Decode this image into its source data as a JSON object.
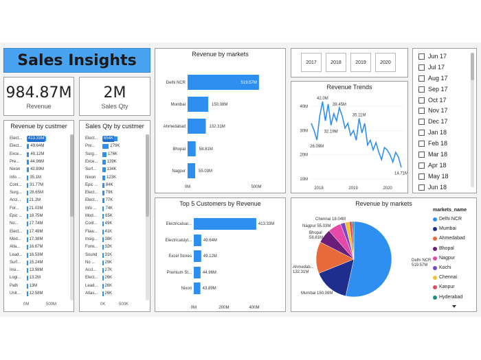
{
  "header": {
    "title": "Sales Insights"
  },
  "kpis": {
    "revenue": {
      "value": "984.87M",
      "label": "Revenue"
    },
    "sales_qty": {
      "value": "2M",
      "label": "Sales Qty"
    }
  },
  "revenue_by_customer": {
    "title": "Revenue by custmer",
    "axis": [
      "0M",
      "500M"
    ],
    "rows": [
      {
        "label": "Elect...",
        "value": 413.33,
        "text": "413.33M",
        "highlight": true
      },
      {
        "label": "Elect...",
        "value": 49.64,
        "text": "49.64M"
      },
      {
        "label": "Exce...",
        "value": 49.12,
        "text": "49.12M"
      },
      {
        "label": "Pre...",
        "value": 44.96,
        "text": "44.96M"
      },
      {
        "label": "Nixon",
        "value": 43.89,
        "text": "43.89M"
      },
      {
        "label": "Info ...",
        "value": 35.1,
        "text": "35.1M"
      },
      {
        "label": "Cont...",
        "value": 31.77,
        "text": "31.77M"
      },
      {
        "label": "Surg...",
        "value": 28.65,
        "text": "28.65M"
      },
      {
        "label": "Acci...",
        "value": 21.2,
        "text": "21.2M"
      },
      {
        "label": "For...",
        "value": 21.03,
        "text": "21.03M"
      },
      {
        "label": "Epic ...",
        "value": 18.75,
        "text": "18.75M"
      },
      {
        "label": "No...",
        "value": 17.74,
        "text": "17.74M"
      },
      {
        "label": "Elect...",
        "value": 17.49,
        "text": "17.49M"
      },
      {
        "label": "Mod...",
        "value": 17.38,
        "text": "17.38M"
      },
      {
        "label": "Atla...",
        "value": 16.67,
        "text": "16.67M"
      },
      {
        "label": "Lead...",
        "value": 16.53,
        "text": "16.53M"
      },
      {
        "label": "Surf...",
        "value": 15.24,
        "text": "15.24M"
      },
      {
        "label": "Insi...",
        "value": 13.98,
        "text": "13.98M"
      },
      {
        "label": "Logi...",
        "value": 13.2,
        "text": "13.2M"
      },
      {
        "label": "Path",
        "value": 13.0,
        "text": "13M"
      },
      {
        "label": "Unit...",
        "value": 12.58,
        "text": "12.58M"
      }
    ]
  },
  "sales_qty_by_customer": {
    "title": "Sales Qty by custmer",
    "axis": [
      "0K",
      "500K"
    ],
    "rows": [
      {
        "label": "Elect...",
        "value": 654,
        "text": "654K",
        "highlight": true
      },
      {
        "label": "Pre...",
        "value": 279,
        "text": "279K"
      },
      {
        "label": "Surg...",
        "value": 176,
        "text": "176K"
      },
      {
        "label": "Exce...",
        "value": 139,
        "text": "139K"
      },
      {
        "label": "Surf...",
        "value": 134,
        "text": "134K"
      },
      {
        "label": "Nixon",
        "value": 123,
        "text": "123K"
      },
      {
        "label": "Epic ...",
        "value": 84,
        "text": "84K"
      },
      {
        "label": "Elect...",
        "value": 79,
        "text": "79K"
      },
      {
        "label": "Elect...",
        "value": 77,
        "text": "77K"
      },
      {
        "label": "Info ...",
        "value": 74,
        "text": "74K"
      },
      {
        "label": "Mod...",
        "value": 65,
        "text": "65K"
      },
      {
        "label": "Cont...",
        "value": 49,
        "text": "49K"
      },
      {
        "label": "Flaw...",
        "value": 41,
        "text": "41K"
      },
      {
        "label": "Insig...",
        "value": 38,
        "text": "38K"
      },
      {
        "label": "Forw...",
        "value": 32,
        "text": "32K"
      },
      {
        "label": "Sound",
        "value": 31,
        "text": "31K"
      },
      {
        "label": "No ...",
        "value": 29,
        "text": "29K"
      },
      {
        "label": "Accl...",
        "value": 27,
        "text": "27K"
      },
      {
        "label": "Elect...",
        "value": 26,
        "text": "26K"
      },
      {
        "label": "Lead...",
        "value": 26,
        "text": "26K"
      },
      {
        "label": "Atlas...",
        "value": 26,
        "text": "26K"
      }
    ]
  },
  "revenue_by_markets_bar": {
    "title": "Revenue by markets",
    "axis": [
      "0M",
      "500M"
    ],
    "rows": [
      {
        "label": "Delhi NCR",
        "value": 519.57,
        "text": "519.57M"
      },
      {
        "label": "Mumbai",
        "value": 150.08,
        "text": "150.08M"
      },
      {
        "label": "Ahmedabad",
        "value": 132.31,
        "text": "132.31M"
      },
      {
        "label": "Bhopal",
        "value": 58.81,
        "text": "58.81M"
      },
      {
        "label": "Nagpur",
        "value": 55.03,
        "text": "55.03M"
      }
    ]
  },
  "years": [
    "2017",
    "2018",
    "2019",
    "2020"
  ],
  "months": [
    "Jun 17",
    "Jul 17",
    "Aug 17",
    "Sep 17",
    "Oct 17",
    "Nov 17",
    "Dec 17",
    "Jan 18",
    "Feb 18",
    "Mar 18",
    "Apr 18",
    "May 18",
    "Jun 18"
  ],
  "revenue_trends": {
    "title": "Revenue Trends",
    "y_ticks": [
      "40M",
      "30M",
      "20M",
      "10M"
    ],
    "x_ticks": [
      "2018",
      "2019",
      "2020"
    ],
    "annotations": [
      "42.0M",
      "26.09M",
      "39.45M",
      "32.19M",
      "35.11M",
      "14.71M"
    ]
  },
  "top5_customers": {
    "title": "Top 5 Customers by Revenue",
    "axis": [
      "0M",
      "200M",
      "400M"
    ],
    "rows": [
      {
        "label": "Electricalsar...",
        "value": 413.33,
        "text": "413.33M"
      },
      {
        "label": "Electricalslyt...",
        "value": 49.64,
        "text": "49.64M"
      },
      {
        "label": "Excel Stores",
        "value": 49.12,
        "text": "49.12M"
      },
      {
        "label": "Premium St...",
        "value": 44.96,
        "text": "44.96M"
      },
      {
        "label": "Nixon",
        "value": 43.89,
        "text": "43.89M"
      }
    ]
  },
  "revenue_by_markets_pie": {
    "title": "Revenue by markets",
    "legend_title": "markets_name",
    "slice_labels": [
      {
        "name": "Delhi NCR",
        "text": "Delhi NCR\n519.57M"
      },
      {
        "name": "Mumbai",
        "text": "Mumbai 150.08M"
      },
      {
        "name": "Ahmedabad",
        "text": "Ahmedab...\n132.31M"
      },
      {
        "name": "Bhopal",
        "text": "Bhopal\n58.81M"
      },
      {
        "name": "Nagpur",
        "text": "Nagpur 55.03M"
      },
      {
        "name": "Chennai",
        "text": "Chennai 18.04M"
      }
    ]
  },
  "chart_data": [
    {
      "type": "bar",
      "title": "Revenue by markets",
      "categories": [
        "Delhi NCR",
        "Mumbai",
        "Ahmedabad",
        "Bhopal",
        "Nagpur"
      ],
      "values": [
        519.57,
        150.08,
        132.31,
        58.81,
        55.03
      ],
      "xlim": [
        0,
        500
      ]
    },
    {
      "type": "line",
      "title": "Revenue Trends",
      "x_ticks": [
        "2018",
        "2019",
        "2020"
      ],
      "ylim": [
        8,
        44
      ],
      "values": [
        33,
        30,
        26.09,
        36,
        42.0,
        34,
        41,
        32.19,
        37,
        34,
        39.45,
        36,
        31,
        33,
        28,
        30,
        26,
        35.11,
        29,
        33,
        24,
        26,
        22,
        25,
        21,
        18,
        23,
        22,
        20,
        17,
        21,
        19,
        14.71
      ]
    },
    {
      "type": "bar",
      "title": "Top 5 Customers by Revenue",
      "categories": [
        "Electricalsar...",
        "Electricalslyt...",
        "Excel Stores",
        "Premium St...",
        "Nixon"
      ],
      "values": [
        413.33,
        49.64,
        49.12,
        44.96,
        43.89
      ],
      "xlim": [
        0,
        400
      ]
    },
    {
      "type": "pie",
      "title": "Revenue by markets",
      "legend_title": "markets_name",
      "categories": [
        "Delhi NCR",
        "Mumbai",
        "Ahmedabad",
        "Bhopal",
        "Nagpur",
        "Kochi",
        "Chennai",
        "Kanpur",
        "Hyderabad"
      ],
      "values": [
        519.57,
        150.08,
        132.31,
        58.81,
        55.03,
        19.0,
        18.04,
        12.0,
        7.0
      ],
      "colors": [
        "#2f8ff1",
        "#1f2d8c",
        "#e8693a",
        "#6b1d7a",
        "#e64aa8",
        "#7a46c8",
        "#f0c232",
        "#e04a62",
        "#1a8f7a"
      ]
    }
  ]
}
